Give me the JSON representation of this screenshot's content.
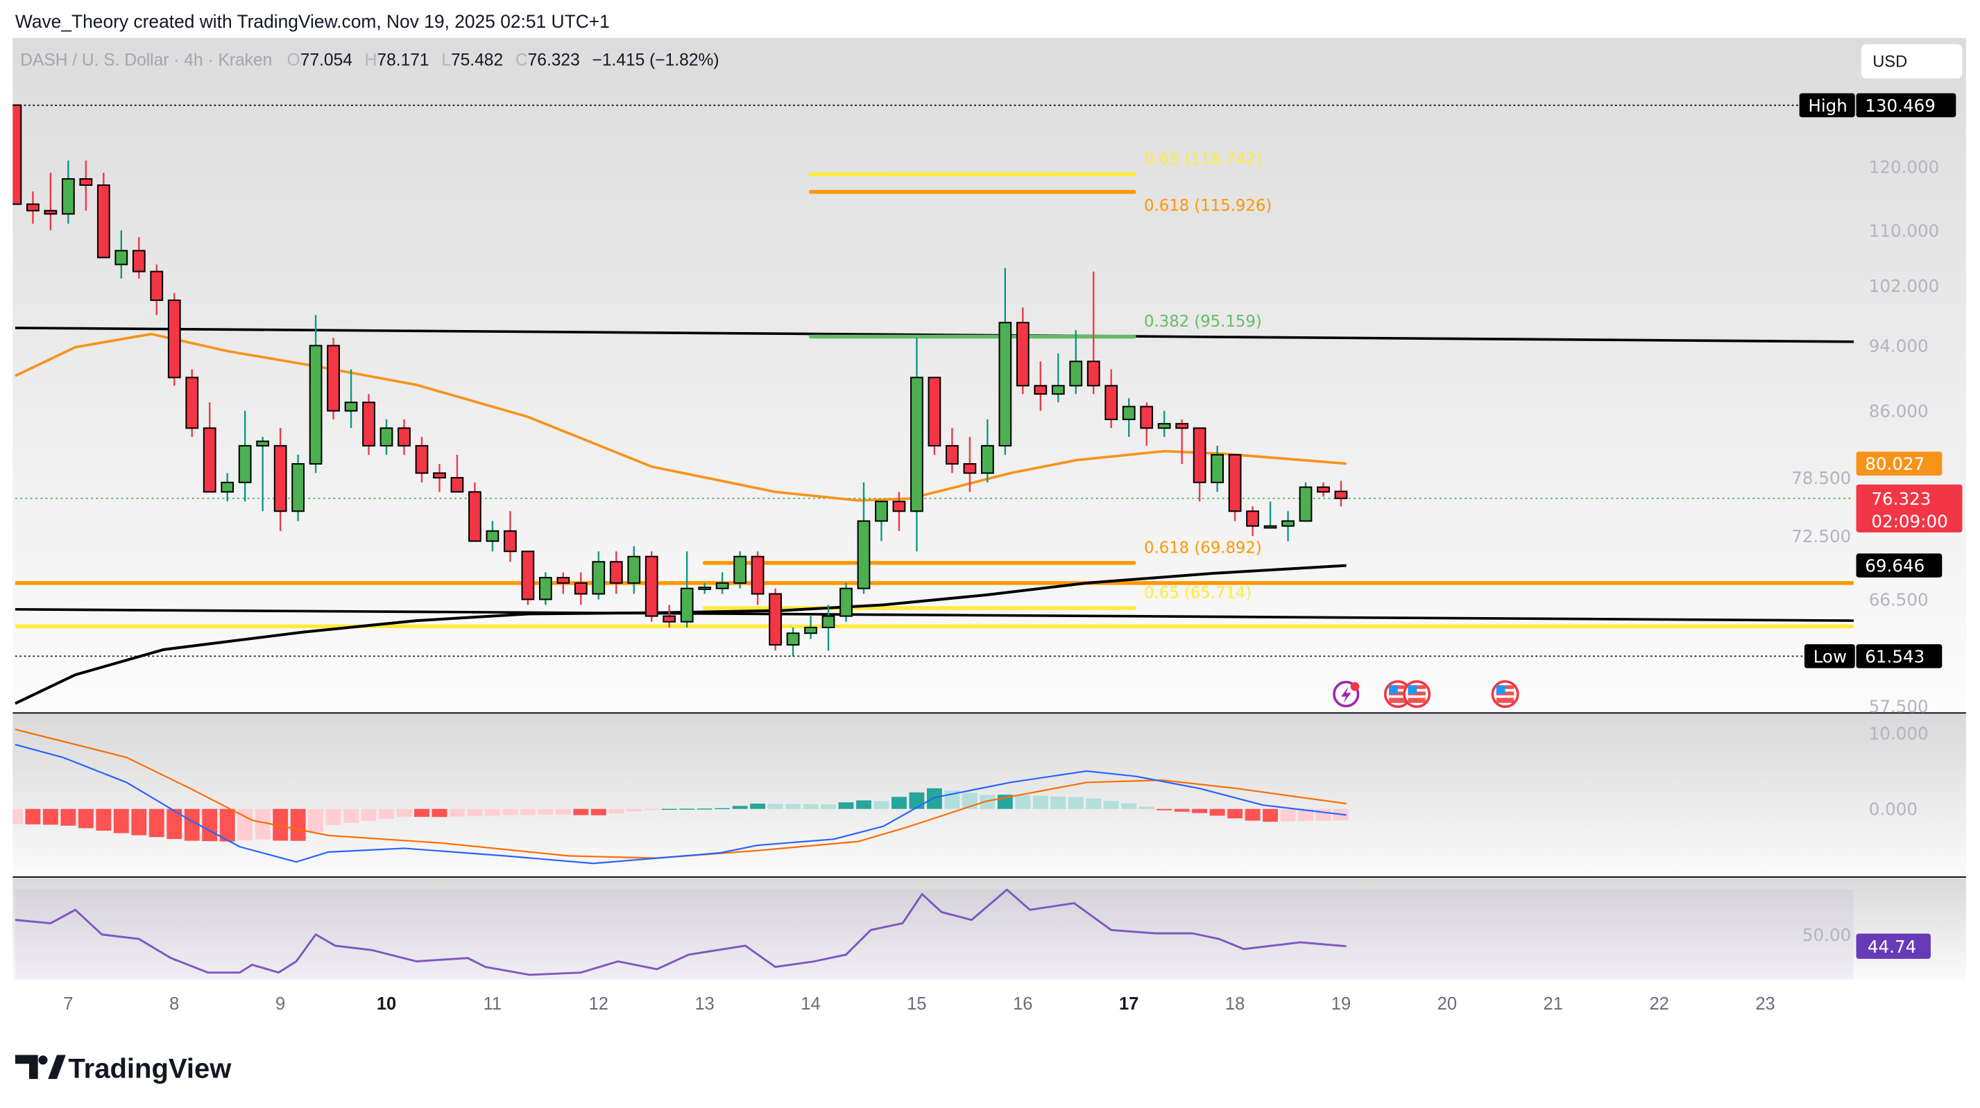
{
  "header": {
    "attribution": "Wave_Theory created with TradingView.com, Nov 19, 2025 02:51 UTC+1",
    "symbol": "DASH / U. S. Dollar · 4h · Kraken",
    "o_label": "O",
    "o": "77.054",
    "h_label": "H",
    "h": "78.171",
    "l_label": "L",
    "l": "75.482",
    "c_label": "C",
    "c": "76.323",
    "change": "−1.415 (−1.82%)"
  },
  "currency_button": "USD",
  "price_axis": {
    "ticks": [
      "120.000",
      "110.000",
      "102.000",
      "94.000",
      "86.000",
      "78.500",
      "72.500",
      "66.500",
      "57.500"
    ],
    "high_tag": "High",
    "high_value": "130.469",
    "low_tag": "Low",
    "low_value": "61.543",
    "ema_value": "80.027",
    "last_price": "76.323",
    "countdown": "02:09:00",
    "ma200_value": "69.646"
  },
  "macd_axis": {
    "ticks": [
      "10.000",
      "0.000"
    ]
  },
  "rsi_axis": {
    "ticks": [
      "50.00"
    ],
    "value": "44.74"
  },
  "time_axis": [
    "7",
    "8",
    "9",
    "10",
    "11",
    "12",
    "13",
    "14",
    "15",
    "16",
    "17",
    "18",
    "19",
    "20",
    "21",
    "22",
    "23"
  ],
  "brand": "TradingView",
  "colors": {
    "up": "#4caf50",
    "down": "#f23645",
    "ema": "#f7931a",
    "ma200": "#000000",
    "fib_yellow": "#ffeb3b",
    "fib_orange": "#ff9800",
    "fib_green": "#66bb6a",
    "macd": "#2962ff",
    "signal": "#ff6d00",
    "rsi": "#7e57c2",
    "rsi_tag": "#673ab7"
  },
  "chart_data": {
    "type": "candlestick",
    "title": "DASH / U. S. Dollar · 4h · Kraken",
    "price_scale": "log",
    "ylim": [
      55,
      135
    ],
    "x_unit": "4h candle index (6 per day, index 0 ≈ Nov 6 ~20:00)",
    "ohlc": [
      [
        130.5,
        130.5,
        114,
        114
      ],
      [
        114,
        116,
        111,
        113
      ],
      [
        113,
        119,
        110,
        112.5
      ],
      [
        112.5,
        121,
        111,
        118
      ],
      [
        118,
        121,
        113,
        117
      ],
      [
        117,
        119,
        106,
        106
      ],
      [
        105,
        110,
        103,
        107
      ],
      [
        107,
        109,
        103,
        104
      ],
      [
        104,
        105,
        98,
        100
      ],
      [
        100,
        101,
        89,
        90
      ],
      [
        90,
        91,
        83,
        84
      ],
      [
        84,
        87,
        77,
        77
      ],
      [
        77,
        79,
        76,
        78
      ],
      [
        78,
        86,
        76,
        82
      ],
      [
        82,
        83,
        75,
        82.5
      ],
      [
        82,
        84,
        73,
        75
      ],
      [
        75,
        81,
        74,
        80
      ],
      [
        80,
        98,
        79,
        94
      ],
      [
        94,
        95,
        85,
        86
      ],
      [
        86,
        91,
        84,
        87
      ],
      [
        87,
        88,
        81,
        82
      ],
      [
        82,
        85,
        81,
        84
      ],
      [
        84,
        85,
        81,
        82
      ],
      [
        82,
        83,
        78,
        79
      ],
      [
        79,
        80,
        77,
        78.5
      ],
      [
        78.5,
        81,
        77,
        77
      ],
      [
        77,
        78,
        72,
        72
      ],
      [
        72,
        74,
        71,
        73
      ],
      [
        73,
        75,
        70,
        71
      ],
      [
        71,
        71,
        66,
        66.5
      ],
      [
        66.5,
        69,
        66,
        68.5
      ],
      [
        68.5,
        69,
        67,
        68
      ],
      [
        68,
        69,
        66,
        67
      ],
      [
        67,
        71,
        66.5,
        70
      ],
      [
        70,
        71,
        67,
        68
      ],
      [
        68,
        71.5,
        67,
        70.5
      ],
      [
        70.5,
        71,
        64.5,
        65
      ],
      [
        65,
        66,
        64,
        64.5
      ],
      [
        64.5,
        71,
        64,
        67.5
      ],
      [
        67.5,
        68,
        67,
        67.6
      ],
      [
        67.5,
        69,
        67,
        68
      ],
      [
        68,
        71,
        67.5,
        70.5
      ],
      [
        70.5,
        71,
        66,
        67
      ],
      [
        67,
        67.5,
        62,
        62.5
      ],
      [
        62.5,
        64,
        61.5,
        63.5
      ],
      [
        63.5,
        65,
        63,
        64
      ],
      [
        64,
        66,
        62,
        65
      ],
      [
        65,
        68,
        64.5,
        67.5
      ],
      [
        67.5,
        78,
        67,
        74
      ],
      [
        74,
        76,
        72,
        76
      ],
      [
        76,
        77,
        73,
        75
      ],
      [
        75,
        95,
        71,
        90
      ],
      [
        90,
        90,
        81,
        82
      ],
      [
        82,
        84,
        79,
        80
      ],
      [
        80,
        83,
        77,
        79
      ],
      [
        79,
        85,
        78,
        82
      ],
      [
        82,
        104.5,
        81,
        97
      ],
      [
        97,
        99,
        88,
        89
      ],
      [
        89,
        92,
        86,
        88
      ],
      [
        88,
        93,
        87,
        89
      ],
      [
        89,
        96,
        88,
        92
      ],
      [
        92,
        104,
        88,
        89
      ],
      [
        89,
        91,
        84,
        85
      ],
      [
        85,
        87.5,
        83,
        86.5
      ],
      [
        86.5,
        87,
        82,
        84
      ],
      [
        84,
        86,
        83,
        84.5
      ],
      [
        84.5,
        85,
        80,
        84
      ],
      [
        84,
        84,
        76,
        78
      ],
      [
        78,
        82,
        77,
        81
      ],
      [
        81,
        81,
        74,
        75
      ],
      [
        75,
        75.5,
        72.5,
        73.5
      ],
      [
        73.5,
        76,
        73.3,
        73.5
      ],
      [
        73.5,
        75,
        72,
        74
      ],
      [
        74,
        78,
        74,
        77.5
      ],
      [
        77.5,
        78,
        76.5,
        77
      ],
      [
        77.054,
        78.171,
        75.482,
        76.323
      ]
    ],
    "ema": {
      "name": "EMA",
      "x": [
        0,
        3.4,
        7.7,
        12,
        17,
        22.7,
        29,
        36,
        43,
        47.7,
        50.6,
        53.4,
        56.3,
        60,
        65,
        68.4,
        75.3
      ],
      "y": [
        90.2,
        93.8,
        95.5,
        93.3,
        91.4,
        89.1,
        85.3,
        79.7,
        77.0,
        76.1,
        76.3,
        77.6,
        79.0,
        80.4,
        81.4,
        81.1,
        80.027
      ]
    },
    "ma200": {
      "name": "MA 200",
      "x": [
        0,
        3.4,
        8.4,
        16.3,
        22.7,
        29.1,
        36.3,
        43.4,
        49.1,
        54.9,
        60.6,
        67.7,
        75.3
      ],
      "y": [
        57.7,
        60.0,
        62.1,
        63.6,
        64.6,
        65.2,
        65.3,
        65.5,
        66.0,
        66.9,
        68.0,
        68.9,
        69.646
      ]
    },
    "trendlines": [
      {
        "name": "upper-trendline",
        "x": [
          0,
          104
        ],
        "y": [
          96.3,
          94.5
        ]
      },
      {
        "name": "lower-trendline",
        "x": [
          0,
          104
        ],
        "y": [
          65.6,
          64.6
        ]
      }
    ],
    "horizontal_lines": [
      {
        "name": "orange-support",
        "price": 68.0,
        "color": "orange"
      },
      {
        "name": "yellow-support",
        "price": 64.1,
        "color": "yellow"
      }
    ],
    "fib_levels": [
      {
        "label": "0.65 (118.742)",
        "price": 118.742,
        "color": "yellow",
        "x": [
          45,
          63.3
        ]
      },
      {
        "label": "0.618 (115.926)",
        "price": 115.926,
        "color": "orange",
        "x": [
          45,
          63.3
        ]
      },
      {
        "label": "0.382 (95.159)",
        "price": 95.159,
        "color": "green",
        "x": [
          45,
          63.3
        ]
      },
      {
        "label": "0.618 (69.892)",
        "price": 69.892,
        "color": "orange",
        "x": [
          39,
          63.3
        ]
      },
      {
        "label": "0.65 (65.714)",
        "price": 65.714,
        "color": "yellow",
        "x": [
          39,
          63.3
        ]
      }
    ],
    "high": 130.469,
    "low": 61.543,
    "last": 76.323,
    "macd": {
      "ylim": [
        -10,
        12
      ],
      "macd": {
        "x": [
          0,
          2.7,
          6.3,
          9.9,
          12.7,
          15.9,
          17.7,
          22,
          27.7,
          32.7,
          36.3,
          39.9,
          42,
          46.3,
          49.1,
          52,
          56.3,
          60.6,
          63.4,
          67,
          70.6,
          75.3
        ],
        "y": [
          8.5,
          6.8,
          3.5,
          -1.5,
          -5,
          -7,
          -5.7,
          -5.2,
          -6.2,
          -7.2,
          -6.5,
          -5.8,
          -4.8,
          -4,
          -2.3,
          1.5,
          3.5,
          5,
          4.3,
          2.7,
          0.5,
          -0.8
        ]
      },
      "signal": {
        "x": [
          0,
          6.3,
          9.9,
          13.4,
          17.7,
          24.1,
          31.3,
          36.3,
          42,
          47.7,
          50.6,
          54.9,
          60.6,
          64.9,
          69.1,
          75.3
        ],
        "y": [
          10.5,
          6.8,
          2.7,
          -1.5,
          -3.5,
          -4.5,
          -6.2,
          -6.5,
          -5.5,
          -4.3,
          -2.3,
          1,
          3.5,
          3.8,
          2.7,
          0.7
        ]
      }
    },
    "rsi": {
      "ylim": [
        30,
        70
      ],
      "x": [
        0,
        2,
        3.4,
        4.9,
        7,
        8.8,
        10.9,
        12.7,
        13.4,
        14.9,
        15.9,
        17,
        18.1,
        20.2,
        22.7,
        25.6,
        26.6,
        29.1,
        32,
        34.1,
        36.3,
        38.1,
        41.3,
        43,
        45.2,
        47,
        48.4,
        50.2,
        51.3,
        52.4,
        54.1,
        56.1,
        57.4,
        59.9,
        62,
        64.5,
        66.6,
        68.1,
        69.5,
        72.7,
        75.3
      ],
      "y": [
        56.5,
        55,
        61,
        50,
        48,
        39.5,
        33,
        33,
        36.5,
        33,
        38,
        50,
        45,
        43,
        38,
        39.5,
        35.5,
        32,
        33,
        38,
        34.5,
        41,
        45,
        35.5,
        38,
        41,
        52,
        55,
        68,
        60,
        56.5,
        70,
        61,
        64,
        52,
        50.5,
        50.5,
        48,
        43.5,
        46.5,
        44.74
      ]
    }
  }
}
